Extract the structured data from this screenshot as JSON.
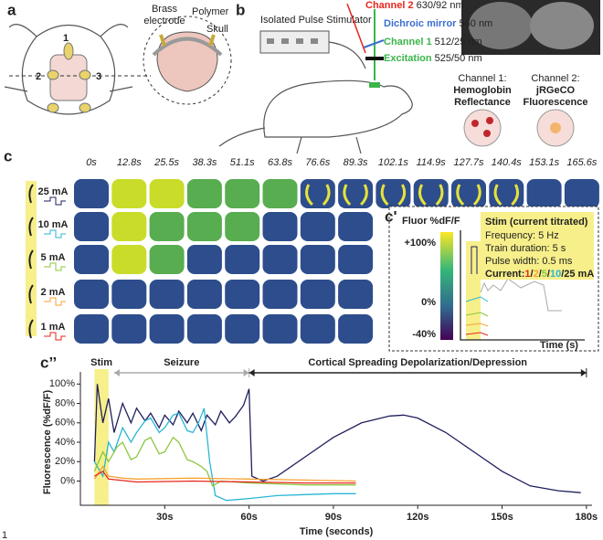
{
  "figure_number": "1",
  "panel_a": {
    "label": "a",
    "electrodes": [
      "1",
      "2",
      "3"
    ],
    "brass_electrode": [
      "Brass",
      "electrode"
    ],
    "polymer": "Polymer",
    "skull": "Skull"
  },
  "panel_b": {
    "label": "b",
    "stimulator": "Isolated Pulse Stimulator",
    "channel2": {
      "name": "Channel 2",
      "spec": "630/92 nm"
    },
    "dichroic": {
      "name": "Dichroic mirror",
      "spec": "560 nm"
    },
    "channel1": {
      "name": "Channel 1",
      "spec": "512/25 nm"
    },
    "excitation": {
      "name": "Excitation",
      "spec": "525/50 nm"
    },
    "ch1_caption": [
      "Channel 1:",
      "Hemoglobin",
      "Reflectance"
    ],
    "ch2_caption": [
      "Channel 2:",
      "jRGeCO",
      "Fluorescence"
    ]
  },
  "panel_c": {
    "label": "c",
    "times": [
      "0s",
      "12.8s",
      "25.5s",
      "38.3s",
      "51.1s",
      "63.8s",
      "76.6s",
      "89.3s",
      "102.1s",
      "114.9s",
      "127.7s",
      "140.4s",
      "153.1s",
      "165.6s"
    ],
    "currents": [
      {
        "text": "25 mA",
        "color": "#1f1f5e"
      },
      {
        "text": "10 mA",
        "color": "#29b6d6"
      },
      {
        "text": "5 mA",
        "color": "#8cc63f"
      },
      {
        "text": "2 mA",
        "color": "#f7a234"
      },
      {
        "text": "1 mA",
        "color": "#e8261d"
      }
    ]
  },
  "panel_c_prime": {
    "label": "c'",
    "colorbar_title": "Fluor %dF/F",
    "colorbar_ticks": [
      "+100%",
      "0%",
      "-40%"
    ],
    "stim_title": "Stim (current titrated)",
    "params": [
      "Frequency: 5 Hz",
      "Train duration: 5 s",
      "Pulse width: 0.5 ms"
    ],
    "current_prefix": "Current:",
    "current_parts": [
      {
        "text": "1",
        "color": "#e8261d"
      },
      {
        "text": "/",
        "color": "#222222"
      },
      {
        "text": "2",
        "color": "#f7a234"
      },
      {
        "text": "/",
        "color": "#222222"
      },
      {
        "text": "5",
        "color": "#8cc63f"
      },
      {
        "text": "/",
        "color": "#222222"
      },
      {
        "text": "10",
        "color": "#29b6d6"
      },
      {
        "text": "/25 mA",
        "color": "#222222"
      }
    ],
    "x_label": "Time (s)"
  },
  "chart_data": {
    "type": "line",
    "label": "c’’",
    "annotations": {
      "stim": "Stim",
      "seizure": "Seizure",
      "csd": "Cortical Spreading Depolarization/Depression"
    },
    "stim_band": [
      5,
      10
    ],
    "seizure_span": [
      12,
      60
    ],
    "csd_span": [
      60,
      180
    ],
    "ylabel": "Fluorescence (%dF/F)",
    "xlabel": "Time (seconds)",
    "xlim": [
      0,
      182
    ],
    "ylim": [
      -25,
      105
    ],
    "xticks": [
      {
        "value": 30,
        "label": "30s"
      },
      {
        "value": 60,
        "label": "60s"
      },
      {
        "value": 90,
        "label": "90s"
      },
      {
        "value": 120,
        "label": "120s"
      },
      {
        "value": 150,
        "label": "150s"
      },
      {
        "value": 180,
        "label": "180s"
      }
    ],
    "yticks": [
      {
        "value": 0,
        "label": "0%"
      },
      {
        "value": 20,
        "label": "20%"
      },
      {
        "value": 40,
        "label": "40%"
      },
      {
        "value": 60,
        "label": "60%"
      },
      {
        "value": 80,
        "label": "80%"
      },
      {
        "value": 100,
        "label": "100%"
      }
    ],
    "series": [
      {
        "color": "#1f1f5e",
        "x": [
          5,
          6,
          8,
          10,
          12,
          15,
          18,
          20,
          23,
          25,
          28,
          30,
          33,
          35,
          38,
          40,
          43,
          45,
          48,
          50,
          53,
          55,
          58,
          60,
          61,
          65,
          70,
          80,
          90,
          100,
          110,
          115,
          120,
          130,
          140,
          150,
          160,
          170,
          178
        ],
        "values": [
          20,
          100,
          60,
          85,
          50,
          80,
          60,
          75,
          62,
          70,
          55,
          68,
          58,
          72,
          60,
          70,
          52,
          68,
          58,
          72,
          60,
          66,
          78,
          95,
          5,
          0,
          5,
          25,
          45,
          60,
          67,
          68,
          65,
          50,
          30,
          10,
          -5,
          -10,
          -12
        ]
      },
      {
        "color": "#29b6d6",
        "x": [
          5,
          8,
          10,
          12,
          15,
          18,
          20,
          23,
          25,
          28,
          30,
          33,
          35,
          38,
          40,
          42,
          44,
          46,
          48,
          52,
          60,
          70,
          80,
          90,
          98
        ],
        "values": [
          20,
          5,
          40,
          30,
          55,
          40,
          50,
          62,
          65,
          50,
          55,
          68,
          70,
          52,
          50,
          60,
          75,
          20,
          -15,
          -20,
          -18,
          -15,
          -14,
          -13,
          -13
        ]
      },
      {
        "color": "#8cc63f",
        "x": [
          5,
          8,
          10,
          13,
          15,
          18,
          20,
          23,
          25,
          28,
          30,
          33,
          35,
          38,
          40,
          43,
          45,
          47,
          50,
          60,
          70,
          80,
          90,
          98
        ],
        "values": [
          10,
          30,
          20,
          35,
          40,
          22,
          25,
          42,
          45,
          28,
          30,
          45,
          40,
          22,
          20,
          15,
          10,
          -5,
          0,
          -2,
          -3,
          -4,
          -4,
          -4
        ]
      },
      {
        "color": "#f7a234",
        "x": [
          5,
          8,
          10,
          15,
          20,
          40,
          60,
          80,
          98
        ],
        "values": [
          2,
          15,
          5,
          3,
          2,
          3,
          2,
          1,
          0
        ]
      },
      {
        "color": "#e8261d",
        "x": [
          5,
          8,
          10,
          20,
          40,
          60,
          80,
          98
        ],
        "values": [
          5,
          10,
          2,
          -1,
          0,
          -1,
          -2,
          -2
        ]
      }
    ]
  }
}
